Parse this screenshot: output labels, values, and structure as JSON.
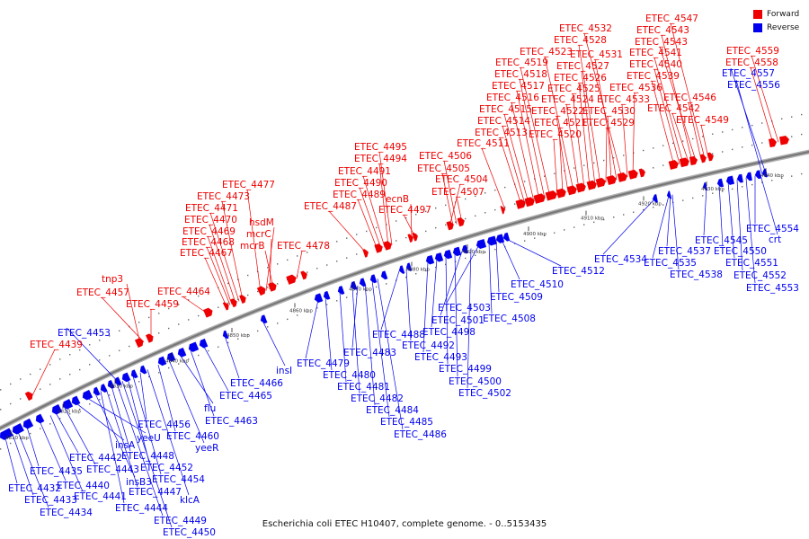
{
  "caption": "Escherichia coli ETEC H10407, complete genome. - 0..5153435",
  "legend": [
    {
      "label": "Forward",
      "color": "#ee0000"
    },
    {
      "label": "Reverse",
      "color": "#0000ee"
    }
  ],
  "colors": {
    "forward": "#ee0000",
    "reverse": "#0000ee",
    "backbone": "#777777"
  },
  "ticks": [
    "4810 kbp",
    "4820 kbp",
    "4830 kbp",
    "4840 kbp",
    "4850 kbp",
    "4860 kbp",
    "4870 kbp",
    "4880 kbp",
    "4890 kbp",
    "4900 kbp",
    "4910 kbp",
    "4920 kbp",
    "4930 kbp",
    "4940 kbp"
  ],
  "forward_labels": [
    "ETEC_4439",
    "tnp3",
    "ETEC_4457",
    "ETEC_4459",
    "ETEC_4464",
    "ETEC_4467",
    "ETEC_4468",
    "ETEC_4469",
    "ETEC_4470",
    "ETEC_4471",
    "ETEC_4473",
    "ETEC_4477",
    "hsdM",
    "mcrC",
    "mcrB",
    "ETEC_4478",
    "ETEC_4487",
    "ETEC_4489",
    "ETEC_4490",
    "ETEC_4491",
    "ETEC_4494",
    "ETEC_4495",
    "ecnB",
    "ETEC_4497",
    "ETEC_4504",
    "ETEC_4505",
    "ETEC_4506",
    "ETEC_4507",
    "ETEC_4511",
    "ETEC_4513",
    "ETEC_4514",
    "ETEC_4515",
    "ETEC_4516",
    "ETEC_4517",
    "ETEC_4518",
    "ETEC_4519",
    "ETEC_4520",
    "ETEC_4521",
    "ETEC_4522",
    "ETEC_4523",
    "ETEC_4524",
    "ETEC_4525",
    "ETEC_4526",
    "ETEC_4527",
    "ETEC_4528",
    "ETEC_4529",
    "ETEC_4530",
    "ETEC_4531",
    "ETEC_4532",
    "ETEC_4533",
    "ETEC_4536",
    "ETEC_4539",
    "ETEC_4540",
    "ETEC_4541",
    "ETEC_4542",
    "ETEC_4543",
    "ETEC_4543",
    "ETEC_4546",
    "ETEC_4547",
    "ETEC_4549",
    "ETEC_4558",
    "ETEC_4559"
  ],
  "reverse_labels": [
    "ETEC_4453",
    "ETEC_4432",
    "ETEC_4433",
    "ETEC_4434",
    "ETEC_4435",
    "ETEC_4440",
    "ETEC_4441",
    "ETEC_4442",
    "ETEC_4443",
    "insA",
    "yeeU",
    "insB3",
    "ETEC_4444",
    "ETEC_4447",
    "ETEC_4448",
    "ETEC_4449",
    "ETEC_4450",
    "ETEC_4452",
    "ETEC_4454",
    "ETEC_4456",
    "klcA",
    "ETEC_4460",
    "yeeR",
    "flu",
    "ETEC_4463",
    "ETEC_4465",
    "ETEC_4466",
    "insI",
    "ETEC_4479",
    "ETEC_4480",
    "ETEC_4481",
    "ETEC_4482",
    "ETEC_4483",
    "ETEC_4484",
    "ETEC_4485",
    "ETEC_4486",
    "ETEC_4488",
    "ETEC_4492",
    "ETEC_4493",
    "ETEC_4498",
    "ETEC_4499",
    "ETEC_4500",
    "ETEC_4501",
    "ETEC_4502",
    "ETEC_4503",
    "ETEC_4508",
    "ETEC_4509",
    "ETEC_4510",
    "ETEC_4512",
    "ETEC_4534",
    "ETEC_4535",
    "ETEC_4537",
    "ETEC_4538",
    "ETEC_4545",
    "ETEC_4550",
    "ETEC_4551",
    "ETEC_4552",
    "ETEC_4553",
    "ETEC_4554",
    "crt",
    "ETEC_4556",
    "ETEC_4557"
  ]
}
